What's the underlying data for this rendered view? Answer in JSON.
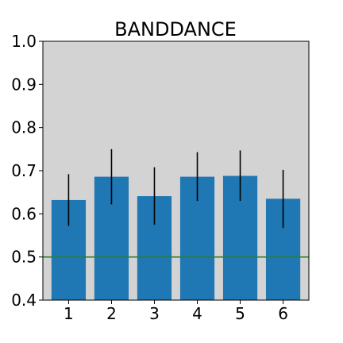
{
  "chart_data": {
    "type": "bar",
    "title": "BANDDANCE",
    "xlabel": "",
    "ylabel": "",
    "categories": [
      "1",
      "2",
      "3",
      "4",
      "5",
      "6"
    ],
    "values": [
      0.632,
      0.686,
      0.641,
      0.686,
      0.688,
      0.635
    ],
    "error_low": [
      0.572,
      0.622,
      0.575,
      0.63,
      0.63,
      0.567
    ],
    "error_high": [
      0.692,
      0.75,
      0.708,
      0.743,
      0.747,
      0.702
    ],
    "ylim": [
      0.4,
      1.0
    ],
    "yticks": [
      "0.4",
      "0.5",
      "0.6",
      "0.7",
      "0.8",
      "0.9",
      "1.0"
    ],
    "reference_line": 0.5,
    "grid": false,
    "colors": {
      "bar": "#1f77b4",
      "error_bar": "#000000",
      "reference_line": "#2e7d32",
      "plot_background": "#d3d3d3",
      "axes": "#000000"
    }
  }
}
